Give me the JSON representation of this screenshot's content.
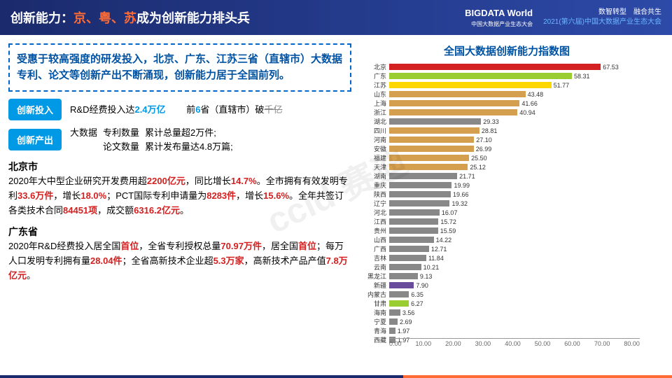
{
  "header": {
    "title_pre": "创新能力：",
    "title_hl": "京、粤、苏",
    "title_post": "成为创新能力排头兵",
    "logo": "BIGDATA World",
    "logo_sub": "中国大数据产业生态大会",
    "line1": "数智转型　融合共生",
    "line2": "2021(第六届)中国大数据产业生态大会"
  },
  "highlight": "受惠于较高强度的研发投入，北京、广东、江苏三省（直辖市）大数据专利、论文等创新产出不断涌现，创新能力居于全国前列。",
  "input_badge": "创新投入",
  "input_text1": "R&D经费投入达",
  "input_hl1": "2.4万亿",
  "input_text2": "前",
  "input_hl2": "6",
  "input_text3": "省（直辖市）破",
  "input_strike": "千亿",
  "output_badge": "创新产出",
  "output_label": "大数据",
  "output_l1a": "专利数量",
  "output_l1b": "累计总量超2万件;",
  "output_l2a": "论文数量",
  "output_l2b": "累计发布量达4.8万篇;",
  "beijing": {
    "title": "北京市",
    "t1": "2020年大中型企业研究开发费用超",
    "v1": "2200亿元",
    "t2": "，同比增长",
    "v2": "14.7%",
    "t3": "。全市拥有有效发明专利",
    "v3": "33.6万件",
    "t4": "，增长",
    "v4": "18.0%",
    "t5": "；PCT国际专利申请量为",
    "v5": "8283件",
    "t6": "，增长",
    "v6": "15.6%",
    "t7": "。全年共签订各类技术合同",
    "v7": "84451项",
    "t8": "，成交额",
    "v8": "6316.2亿元",
    "t9": "。"
  },
  "guangdong": {
    "title": "广东省",
    "t1": "2020年R&D经费投入居全国",
    "v1": "首位",
    "t2": "，全省专利授权总量",
    "v2": "70.97万件",
    "t3": "，居全国",
    "v3": "首位",
    "t4": "；每万人口发明专利拥有量",
    "v4": "28.04件",
    "t5": "；全省高新技术企业超",
    "v5": "5.3万家",
    "t6": "，高新技术产品产值",
    "v6": "7.8万亿元",
    "t7": "。"
  },
  "chart": {
    "title": "全国大数据创新能力指数图",
    "xlim": 80,
    "ticks": [
      "0.00",
      "10.00",
      "20.00",
      "30.00",
      "40.00",
      "50.00",
      "60.00",
      "70.00",
      "80.00"
    ],
    "bars": [
      {
        "label": "北京",
        "value": 67.53,
        "color": "#d32020"
      },
      {
        "label": "广东",
        "value": 58.31,
        "color": "#9acd32"
      },
      {
        "label": "江苏",
        "value": 51.77,
        "color": "#ffd700"
      },
      {
        "label": "山东",
        "value": 43.48,
        "color": "#d4a050"
      },
      {
        "label": "上海",
        "value": 41.66,
        "color": "#d4a050"
      },
      {
        "label": "浙江",
        "value": 40.94,
        "color": "#d4a050"
      },
      {
        "label": "湖北",
        "value": 29.33,
        "color": "#888"
      },
      {
        "label": "四川",
        "value": 28.81,
        "color": "#d4a050"
      },
      {
        "label": "河南",
        "value": 27.1,
        "color": "#d4a050"
      },
      {
        "label": "安徽",
        "value": 26.99,
        "color": "#d4a050"
      },
      {
        "label": "福建",
        "value": 25.5,
        "color": "#d4a050"
      },
      {
        "label": "天津",
        "value": 25.12,
        "color": "#d4a050"
      },
      {
        "label": "湖南",
        "value": 21.71,
        "color": "#888"
      },
      {
        "label": "重庆",
        "value": 19.99,
        "color": "#888"
      },
      {
        "label": "陕西",
        "value": 19.66,
        "color": "#888"
      },
      {
        "label": "辽宁",
        "value": 19.32,
        "color": "#888"
      },
      {
        "label": "河北",
        "value": 16.07,
        "color": "#888"
      },
      {
        "label": "江西",
        "value": 15.72,
        "color": "#888"
      },
      {
        "label": "贵州",
        "value": 15.59,
        "color": "#888"
      },
      {
        "label": "山西",
        "value": 14.22,
        "color": "#888"
      },
      {
        "label": "广西",
        "value": 12.71,
        "color": "#888"
      },
      {
        "label": "吉林",
        "value": 11.84,
        "color": "#888"
      },
      {
        "label": "云南",
        "value": 10.21,
        "color": "#888"
      },
      {
        "label": "黑龙江",
        "value": 9.13,
        "color": "#888"
      },
      {
        "label": "新疆",
        "value": 7.9,
        "color": "#6a4c9c"
      },
      {
        "label": "内蒙古",
        "value": 6.35,
        "color": "#888"
      },
      {
        "label": "甘肃",
        "value": 6.27,
        "color": "#9acd32"
      },
      {
        "label": "海南",
        "value": 3.56,
        "color": "#888"
      },
      {
        "label": "宁夏",
        "value": 2.69,
        "color": "#888"
      },
      {
        "label": "青海",
        "value": 1.97,
        "color": "#888"
      },
      {
        "label": "西藏",
        "value": 1.97,
        "color": "#888"
      }
    ]
  },
  "watermark": "ccid 赛迪"
}
